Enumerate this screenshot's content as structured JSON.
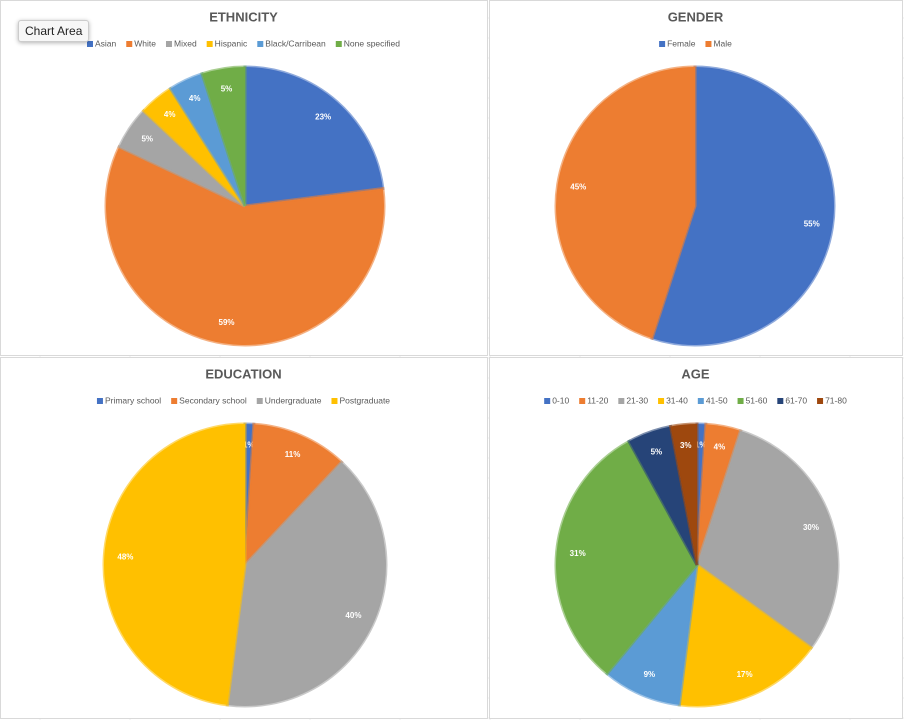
{
  "tooltip": "Chart Area",
  "chart_data": [
    {
      "type": "pie",
      "title": "ETHNICITY",
      "categories": [
        "Asian",
        "White",
        "Mixed",
        "Hispanic",
        "Black/Carribean",
        "None specified"
      ],
      "values": [
        23,
        59,
        5,
        4,
        4,
        5
      ],
      "value_labels": [
        "23%",
        "59%",
        "5%",
        "4%",
        "4%",
        "5%"
      ],
      "colors": [
        "#4472c4",
        "#ed7d31",
        "#a5a5a5",
        "#ffc000",
        "#5b9bd5",
        "#70ad47"
      ]
    },
    {
      "type": "pie",
      "title": "GENDER",
      "categories": [
        "Female",
        "Male"
      ],
      "values": [
        55,
        45
      ],
      "value_labels": [
        "55%",
        "45%"
      ],
      "colors": [
        "#4472c4",
        "#ed7d31"
      ]
    },
    {
      "type": "pie",
      "title": "EDUCATION",
      "categories": [
        "Primary school",
        "Secondary school",
        "Undergraduate",
        "Postgraduate"
      ],
      "values": [
        1,
        11,
        40,
        48
      ],
      "value_labels": [
        "1%",
        "11%",
        "40%",
        "48%"
      ],
      "colors": [
        "#4472c4",
        "#ed7d31",
        "#a5a5a5",
        "#ffc000"
      ]
    },
    {
      "type": "pie",
      "title": "AGE",
      "categories": [
        "0-10",
        "11-20",
        "21-30",
        "31-40",
        "41-50",
        "51-60",
        "61-70",
        "71-80"
      ],
      "values": [
        1,
        4,
        30,
        17,
        9,
        31,
        5,
        3
      ],
      "value_labels": [
        "1%",
        "4%",
        "30%",
        "17%",
        "9%",
        "31%",
        "5%",
        "3%"
      ],
      "colors": [
        "#4472c4",
        "#ed7d31",
        "#a5a5a5",
        "#ffc000",
        "#5b9bd5",
        "#70ad47",
        "#264478",
        "#9e480e"
      ]
    }
  ]
}
